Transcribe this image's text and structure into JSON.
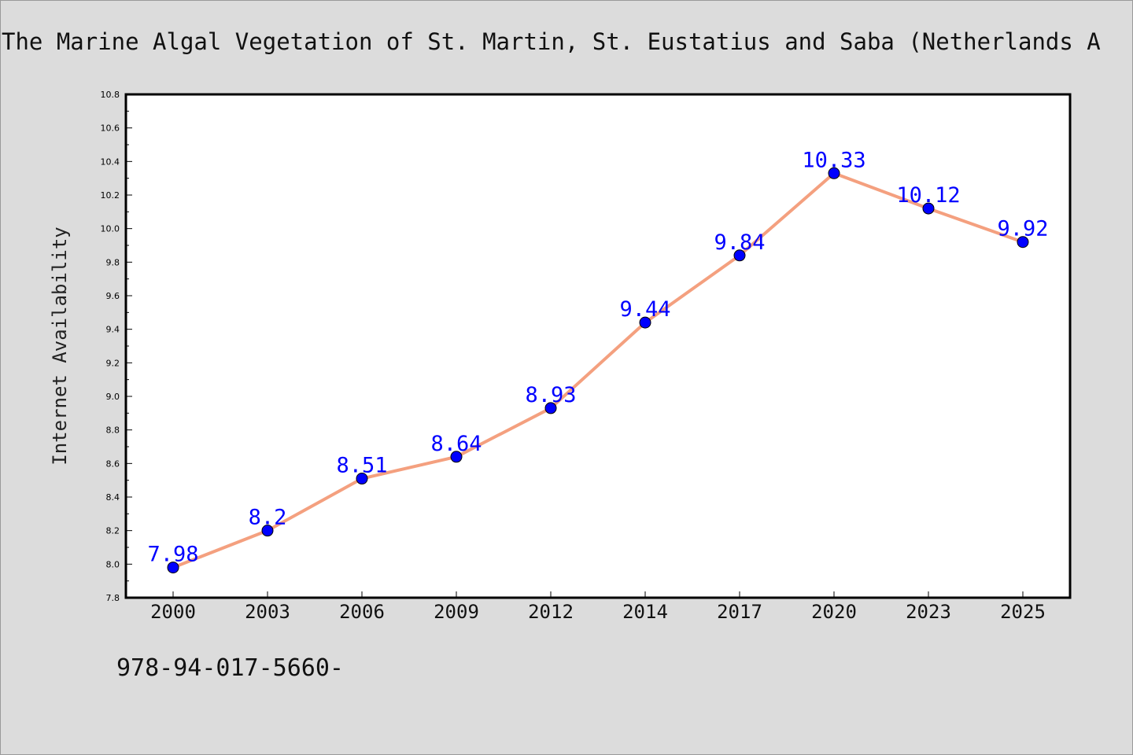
{
  "title": "The Marine Algal Vegetation of St. Martin, St. Eustatius and Saba (Netherlands A",
  "isbn": "978-94-017-5660-",
  "chart_data": {
    "type": "line",
    "title": "The Marine Algal Vegetation of St. Martin, St. Eustatius and Saba (Netherlands A",
    "xlabel": "",
    "ylabel": "Internet Availability",
    "categories": [
      "2000",
      "2003",
      "2006",
      "2009",
      "2012",
      "2014",
      "2017",
      "2020",
      "2023",
      "2025"
    ],
    "series": [
      {
        "values": [
          7.98,
          8.2,
          8.51,
          8.64,
          8.93,
          9.44,
          9.84,
          10.33,
          10.12,
          9.92
        ],
        "labels": [
          "7.98",
          "8.2",
          "8.51",
          "8.64",
          "8.93",
          "9.44",
          "9.84",
          "10.33",
          "10.12",
          "9.92"
        ],
        "line_color": "#f4a07f",
        "marker_color": "#0000ff",
        "label_color": "#0000ff"
      }
    ],
    "ylim": [
      7.8,
      10.8
    ],
    "yticks": [
      "7.8",
      "8.0",
      "8.2",
      "8.4",
      "8.6",
      "8.8",
      "9.0",
      "9.2",
      "9.4",
      "9.6",
      "9.8",
      "10.0",
      "10.2",
      "10.4",
      "10.6",
      "10.8"
    ],
    "grid": false,
    "legend": "none"
  }
}
